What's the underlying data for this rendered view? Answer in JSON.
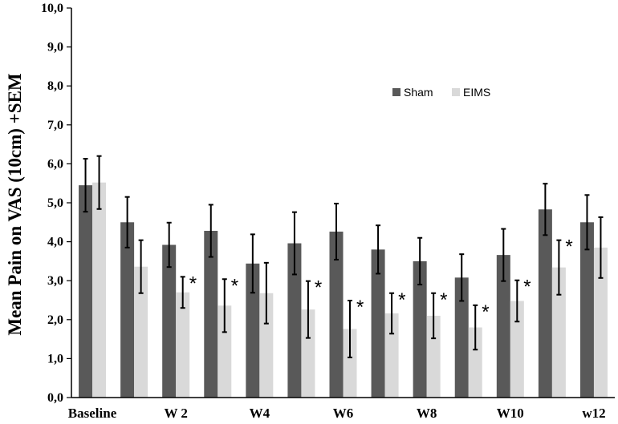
{
  "chart_data": {
    "type": "bar",
    "title": "",
    "xlabel": "",
    "ylabel": "Mean Pain on VAS (10cm) +SEM",
    "ylim": [
      0,
      10
    ],
    "yticks": [
      "0,0",
      "1,0",
      "2,0",
      "3,0",
      "4,0",
      "5,0",
      "6,0",
      "7,0",
      "8,0",
      "9,0",
      "10,0"
    ],
    "grid": false,
    "legend_position": "top-right",
    "categories": [
      "Baseline",
      "",
      "W 2",
      "",
      "W4",
      "",
      "W6",
      "",
      "W8",
      "",
      "W10",
      "",
      "w12"
    ],
    "series": [
      {
        "name": "Sham",
        "color": "#595959",
        "values": [
          5.45,
          4.5,
          3.92,
          4.28,
          3.44,
          3.96,
          4.26,
          3.8,
          3.5,
          3.08,
          3.66,
          4.83,
          4.5
        ],
        "errors": [
          0.68,
          0.65,
          0.57,
          0.67,
          0.75,
          0.8,
          0.72,
          0.62,
          0.6,
          0.6,
          0.67,
          0.66,
          0.7
        ]
      },
      {
        "name": "EIMS",
        "color": "#d9d9d9",
        "values": [
          5.52,
          3.36,
          2.7,
          2.36,
          2.68,
          2.26,
          1.76,
          2.16,
          2.1,
          1.8,
          2.48,
          3.34,
          3.85
        ],
        "errors": [
          0.68,
          0.68,
          0.4,
          0.68,
          0.78,
          0.73,
          0.73,
          0.52,
          0.58,
          0.57,
          0.53,
          0.7,
          0.78
        ]
      }
    ],
    "significance_marker": "*",
    "significant_indices": [
      2,
      3,
      5,
      6,
      7,
      8,
      9,
      10,
      11
    ]
  }
}
